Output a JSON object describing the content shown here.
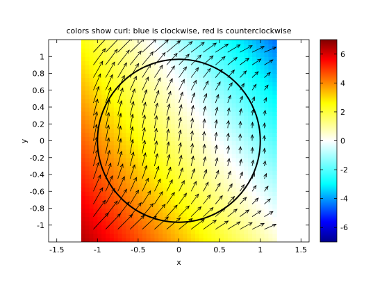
{
  "chart_data": {
    "type": "heatmap",
    "title": "colors show curl: blue is clockwise, red is counterclockwise",
    "xlabel": "x",
    "ylabel": "y",
    "xlim": [
      -1.6,
      1.6
    ],
    "ylim": [
      -1.2,
      1.2
    ],
    "field_extent": {
      "x": [
        -1.2,
        1.2
      ],
      "y": [
        -1.2,
        1.2
      ]
    },
    "xticks": [
      -1.5,
      -1,
      -0.5,
      0,
      0.5,
      1,
      1.5
    ],
    "xtick_labels": [
      "-1.5",
      "-1",
      "-0.5",
      "0",
      "0.5",
      "1",
      "1.5"
    ],
    "yticks": [
      1,
      0.8,
      0.6,
      0.4,
      0.2,
      0,
      -0.2,
      -0.4,
      -0.6,
      -0.8,
      -1
    ],
    "ytick_labels": [
      "1",
      "0.8",
      "0.6",
      "0.4",
      "0.2",
      "0",
      "-0.2",
      "-0.4",
      "-0.6",
      "-0.8",
      "-1"
    ],
    "colorbar": {
      "limits": [
        -7,
        7
      ],
      "ticks": [
        6,
        4,
        2,
        0,
        -2,
        -4,
        -6
      ],
      "tick_labels": [
        "6",
        "4",
        "2",
        "0",
        "-2",
        "-4",
        "-6"
      ],
      "colormap": "jet-like with white at zero: blue-cyan (negative), white (0), yellow-red (positive)"
    },
    "curl_field": {
      "description": "approximately linear in x and y",
      "samples": [
        {
          "x": -1.2,
          "y": -1.2,
          "value": 6.5
        },
        {
          "x": 1.2,
          "y": 1.2,
          "value": -4.5
        },
        {
          "x": 1.2,
          "y": -1.2,
          "value": 0.5
        },
        {
          "x": -1.2,
          "y": 1.2,
          "value": 2.5
        }
      ]
    },
    "vector_field": {
      "type": "quiver",
      "grid_x": [
        -1.05,
        -0.9,
        -0.75,
        -0.6,
        -0.45,
        -0.3,
        -0.15,
        0,
        0.15,
        0.3,
        0.45,
        0.6,
        0.75,
        0.9,
        1.05
      ],
      "grid_y": [
        -1.05,
        -0.9,
        -0.75,
        -0.6,
        -0.45,
        -0.3,
        -0.15,
        0,
        0.15,
        0.3,
        0.45,
        0.6,
        0.75,
        0.9,
        1.05
      ],
      "model": {
        "u": "y^2 + 0.15*(1 - x)",
        "v": "1 - 0.5*x"
      }
    },
    "circle": {
      "center": [
        0,
        0
      ],
      "radius": 1
    }
  }
}
